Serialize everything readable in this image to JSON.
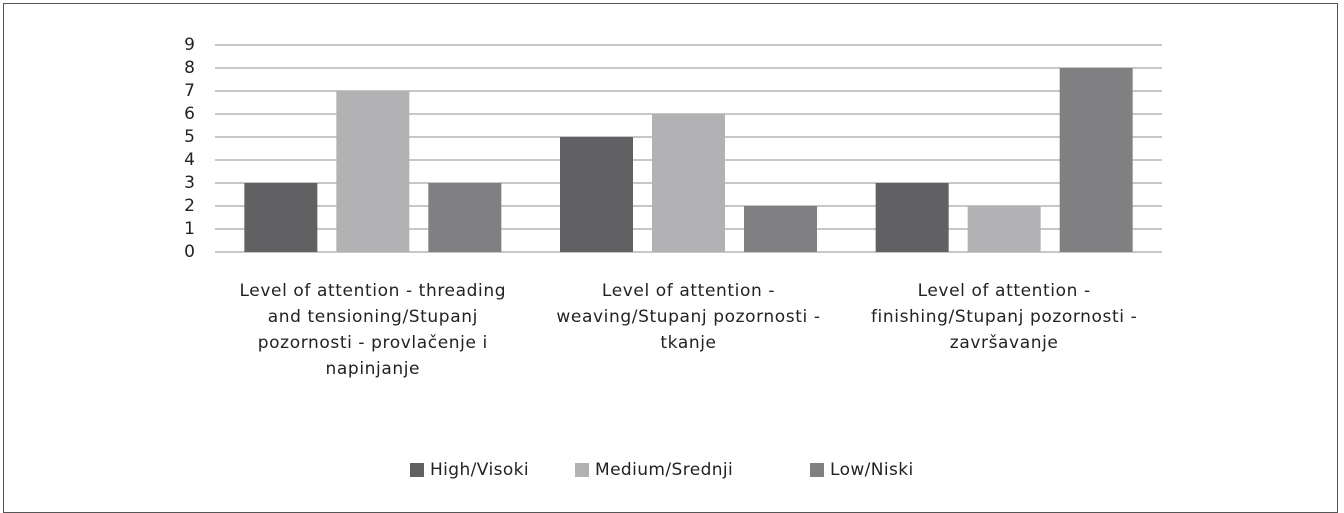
{
  "chart_data": {
    "type": "bar",
    "categories": [
      "Level of attention - threading and tensioning/Stupanj pozornosti - provlačenje i napinjanje",
      "Level of attention - weaving/Stupanj pozornosti - tkanje",
      "Level of attention - finishing/Stupanj pozornosti - završavanje"
    ],
    "series": [
      {
        "name": "High/Visoki",
        "color": "#616063",
        "values": [
          3,
          5,
          3
        ]
      },
      {
        "name": "Medium/Srednji",
        "color": "#b2b2b4",
        "values": [
          7,
          6,
          2
        ]
      },
      {
        "name": "Low/Niski",
        "color": "#808083",
        "values": [
          3,
          2,
          8
        ]
      }
    ],
    "ylim": [
      0,
      9
    ],
    "yticks": [
      0,
      1,
      2,
      3,
      4,
      5,
      6,
      7,
      8,
      9
    ],
    "grid": true,
    "legend": "bottom"
  }
}
